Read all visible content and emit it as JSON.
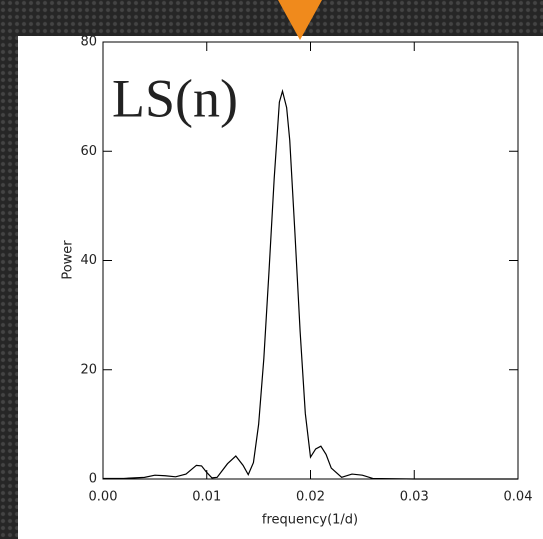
{
  "chart_data": {
    "type": "line",
    "annotation": "LS(n)",
    "xlabel": "frequency(1/d)",
    "ylabel": "Power",
    "x": [
      0,
      0.002,
      0.004,
      0.005,
      0.006,
      0.007,
      0.008,
      0.009,
      0.0095,
      0.01,
      0.0105,
      0.011,
      0.012,
      0.0128,
      0.0135,
      0.014,
      0.0145,
      0.015,
      0.0155,
      0.016,
      0.0165,
      0.017,
      0.0173,
      0.0177,
      0.018,
      0.0185,
      0.019,
      0.0195,
      0.02,
      0.0205,
      0.021,
      0.0215,
      0.022,
      0.023,
      0.024,
      0.025,
      0.026,
      0.03,
      0.04
    ],
    "series": [
      {
        "color": "#000000",
        "values": [
          0.1,
          0.1,
          0.3,
          0.7,
          0.6,
          0.4,
          0.9,
          2.5,
          2.4,
          1.2,
          0.2,
          0.3,
          2.8,
          4.2,
          2.5,
          0.8,
          3,
          10,
          22,
          38,
          55,
          69,
          71,
          68,
          62,
          45,
          27,
          12,
          4,
          5.5,
          6,
          4.5,
          2,
          0.3,
          0.9,
          0.7,
          0.1,
          0,
          0
        ]
      }
    ],
    "xlim": [
      0,
      0.04
    ],
    "ylim": [
      0,
      80
    ],
    "xticks": [
      {
        "value": 0,
        "label": "0.00"
      },
      0.01,
      0.02,
      0.03,
      0.04
    ],
    "yticks": [
      0,
      20,
      40,
      60,
      80
    ],
    "annotation_color": "#f08a1c"
  }
}
